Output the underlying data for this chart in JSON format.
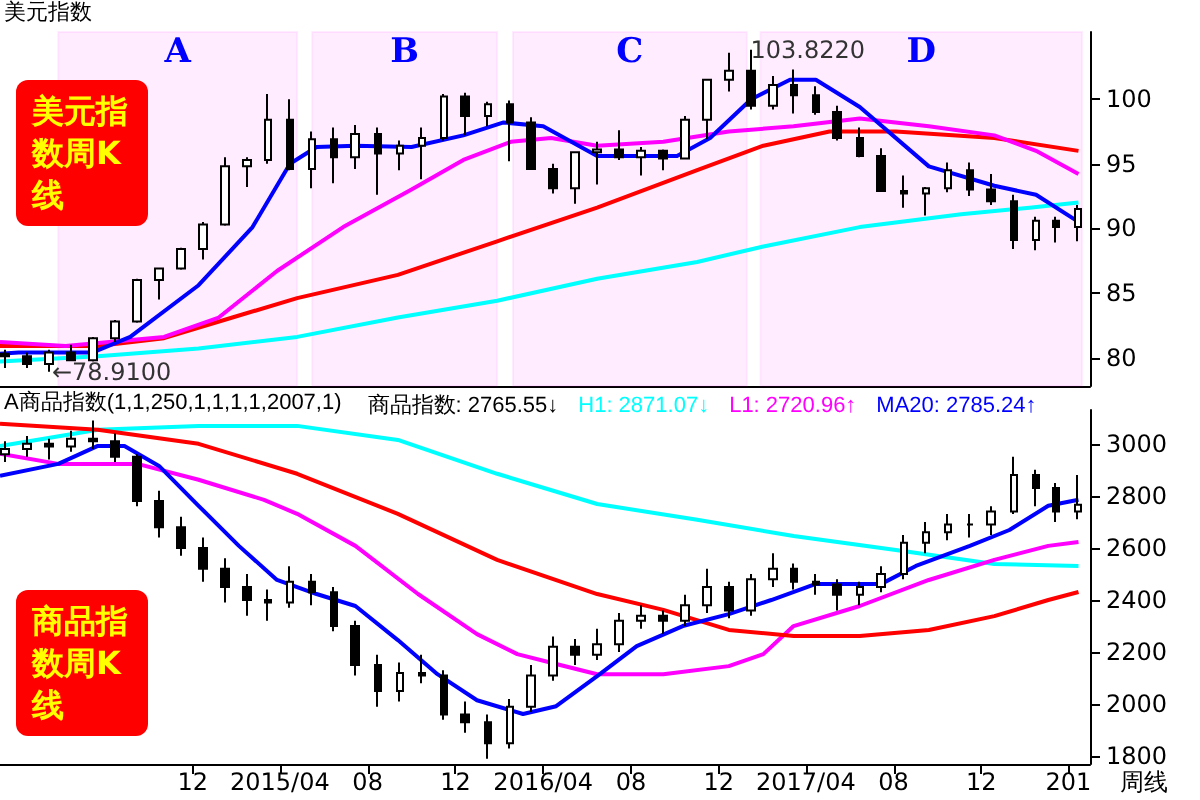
{
  "chart_data": [
    {
      "type": "candlestick",
      "title": "美元指数",
      "xlim": [
        "2014-03-08",
        "2018-05-01"
      ],
      "ylim": [
        77.8,
        105.2
      ],
      "yticks": [
        80,
        85,
        90,
        95,
        100
      ],
      "tick_labels": "y",
      "marker": "none",
      "bands": [
        {
          "axis": "x",
          "from": "2014-05-28",
          "to": "2015-04-25",
          "label": "A",
          "color": "#ff00ff"
        },
        {
          "axis": "x",
          "from": "2015-05-16",
          "to": "2016-01-28",
          "label": "B",
          "color": "#ff00ff"
        },
        {
          "axis": "x",
          "from": "2016-02-19",
          "to": "2017-01-09",
          "label": "C",
          "color": "#ff00ff"
        },
        {
          "axis": "x",
          "from": "2017-01-28",
          "to": "2018-04-20",
          "label": "D",
          "color": "#ff00ff"
        }
      ],
      "annotations": [
        "美元指数周K线",
        {
          "text": "103.8220",
          "x": "2017-01-03",
          "y": 103.822
        },
        {
          "text": "←78.9100",
          "x": "2014-05-08",
          "y": 78.91
        }
      ],
      "series": [
        {
          "color": "#000000",
          "x": [
            "2014-03-15",
            "2014-04-15",
            "2014-05-15",
            "2014-06-15",
            "2014-07-15",
            "2014-08-15",
            "2014-09-15",
            "2014-10-15",
            "2014-11-15",
            "2014-12-15",
            "2015-01-15",
            "2015-02-15",
            "2015-03-15",
            "2015-04-15",
            "2015-05-15",
            "2015-06-15",
            "2015-07-15",
            "2015-08-15",
            "2015-09-15",
            "2015-10-15",
            "2015-11-15",
            "2015-12-15",
            "2016-01-15",
            "2016-02-15",
            "2016-03-15",
            "2016-04-15",
            "2016-05-15",
            "2016-06-15",
            "2016-07-15",
            "2016-08-15",
            "2016-09-15",
            "2016-10-15",
            "2016-11-15",
            "2016-12-15",
            "2017-01-15",
            "2017-02-15",
            "2017-03-15",
            "2017-04-15",
            "2017-05-15",
            "2017-06-15",
            "2017-07-15",
            "2017-08-15",
            "2017-09-15",
            "2017-10-15",
            "2017-11-15",
            "2017-12-15",
            "2018-01-15",
            "2018-02-15",
            "2018-03-15",
            "2018-04-15"
          ],
          "ohlc": [
            [
              80.3,
              80.6,
              79.2,
              80.1
            ],
            [
              80.1,
              80.4,
              79.2,
              79.5
            ],
            [
              79.5,
              80.6,
              78.91,
              80.4
            ],
            [
              80.4,
              81.0,
              79.8,
              79.8
            ],
            [
              79.8,
              81.6,
              79.7,
              81.5
            ],
            [
              81.5,
              82.9,
              81.2,
              82.8
            ],
            [
              82.8,
              86.1,
              82.7,
              86.0
            ],
            [
              86.0,
              86.9,
              84.5,
              86.9
            ],
            [
              86.9,
              88.5,
              86.8,
              88.4
            ],
            [
              88.4,
              90.5,
              87.6,
              90.3
            ],
            [
              90.3,
              95.5,
              90.2,
              94.8
            ],
            [
              94.8,
              95.5,
              93.2,
              95.3
            ],
            [
              95.3,
              100.4,
              95.0,
              98.4
            ],
            [
              98.4,
              100.0,
              94.5,
              94.6
            ],
            [
              94.6,
              97.5,
              93.1,
              96.9
            ],
            [
              96.9,
              97.8,
              93.5,
              95.5
            ],
            [
              95.5,
              98.0,
              94.6,
              97.3
            ],
            [
              97.3,
              97.8,
              92.6,
              95.8
            ],
            [
              95.8,
              96.8,
              94.5,
              96.4
            ],
            [
              96.4,
              97.8,
              93.8,
              97.0
            ],
            [
              97.0,
              100.4,
              96.8,
              100.2
            ],
            [
              100.2,
              100.5,
              97.2,
              98.7
            ],
            [
              98.7,
              99.8,
              97.9,
              99.6
            ],
            [
              99.6,
              99.9,
              95.2,
              98.2
            ],
            [
              98.2,
              98.6,
              94.6,
              94.6
            ],
            [
              94.6,
              95.0,
              92.7,
              93.1
            ],
            [
              93.1,
              95.9,
              91.9,
              95.9
            ],
            [
              95.9,
              96.7,
              93.4,
              96.1
            ],
            [
              96.1,
              97.6,
              95.3,
              95.5
            ],
            [
              95.5,
              96.3,
              94.1,
              96.0
            ],
            [
              96.0,
              96.1,
              94.5,
              95.4
            ],
            [
              95.4,
              98.7,
              95.4,
              98.4
            ],
            [
              98.4,
              101.5,
              96.9,
              101.5
            ],
            [
              101.5,
              103.6,
              100.6,
              102.2
            ],
            [
              102.2,
              103.822,
              99.2,
              99.5
            ],
            [
              99.5,
              101.8,
              99.2,
              101.1
            ],
            [
              101.1,
              102.3,
              98.9,
              100.3
            ],
            [
              100.3,
              101.0,
              98.8,
              99.0
            ],
            [
              99.0,
              99.5,
              96.8,
              97.0
            ],
            [
              97.0,
              97.8,
              95.5,
              95.6
            ],
            [
              95.6,
              96.2,
              92.9,
              92.9
            ],
            [
              92.9,
              94.1,
              91.6,
              92.7
            ],
            [
              92.7,
              93.2,
              91.0,
              93.1
            ],
            [
              93.1,
              95.1,
              92.8,
              94.5
            ],
            [
              94.5,
              95.1,
              92.5,
              93.0
            ],
            [
              93.0,
              94.2,
              91.8,
              92.1
            ],
            [
              92.1,
              92.6,
              88.4,
              89.1
            ],
            [
              89.1,
              90.9,
              88.3,
              90.6
            ],
            [
              90.6,
              90.9,
              88.9,
              90.1
            ],
            [
              90.1,
              91.8,
              89.0,
              91.5
            ]
          ]
        },
        {
          "type": "line",
          "color": "#00ffff",
          "x": [
            "2014-03-08",
            "2014-07-22",
            "2014-12-09",
            "2015-04-25",
            "2015-09-12",
            "2016-01-28",
            "2016-06-15",
            "2016-11-01",
            "2017-02-01",
            "2017-06-15",
            "2017-11-03",
            "2018-02-06",
            "2018-04-15"
          ],
          "values": [
            79.7,
            80.1,
            80.7,
            81.6,
            83.1,
            84.4,
            86.1,
            87.4,
            88.6,
            90.1,
            91.1,
            91.6,
            92.0
          ]
        },
        {
          "type": "line",
          "color": "#ff0000",
          "x": [
            "2014-03-08",
            "2014-07-22",
            "2014-10-22",
            "2015-01-25",
            "2015-04-25",
            "2015-09-12",
            "2016-01-28",
            "2016-06-15",
            "2016-11-01",
            "2017-02-01",
            "2017-05-04",
            "2017-08-04",
            "2017-12-19",
            "2018-04-15"
          ],
          "values": [
            80.9,
            80.9,
            81.5,
            83.1,
            84.6,
            86.4,
            89.0,
            91.6,
            94.5,
            96.4,
            97.5,
            97.5,
            97.0,
            96.0
          ]
        },
        {
          "type": "line",
          "color": "#ff00ff",
          "x": [
            "2014-03-08",
            "2014-06-07",
            "2014-10-22",
            "2015-01-06",
            "2015-03-28",
            "2015-06-28",
            "2015-10-01",
            "2015-12-12",
            "2016-02-16",
            "2016-04-12",
            "2016-06-15",
            "2016-09-15",
            "2016-12-15",
            "2017-03-15",
            "2017-06-15",
            "2017-09-19",
            "2017-12-19",
            "2018-02-15",
            "2018-04-15"
          ],
          "values": [
            81.2,
            80.9,
            81.6,
            83.1,
            86.7,
            90.1,
            93.0,
            95.3,
            96.7,
            97.0,
            96.4,
            96.7,
            97.5,
            97.9,
            98.5,
            97.9,
            97.2,
            96.0,
            94.2
          ]
        },
        {
          "type": "line",
          "color": "#0000ff",
          "x": [
            "2014-03-08",
            "2014-04-03",
            "2014-07-15",
            "2014-09-05",
            "2014-12-09",
            "2015-02-22",
            "2015-04-15",
            "2015-05-22",
            "2015-07-15",
            "2015-10-01",
            "2015-12-12",
            "2016-02-06",
            "2016-04-01",
            "2016-06-15",
            "2016-10-04",
            "2016-11-19",
            "2017-01-15",
            "2017-03-10",
            "2017-04-15",
            "2017-06-15",
            "2017-09-19",
            "2017-12-19",
            "2018-02-15",
            "2018-04-15"
          ],
          "values": [
            80.3,
            80.4,
            80.4,
            81.6,
            85.6,
            90.1,
            95.0,
            96.3,
            96.4,
            96.3,
            97.2,
            98.2,
            97.9,
            95.6,
            95.6,
            97.0,
            100.0,
            101.5,
            101.5,
            99.4,
            94.8,
            93.3,
            92.6,
            90.5
          ]
        }
      ]
    },
    {
      "type": "candlestick",
      "title": "A商品指数(1,1,250,1,1,1,1,2007,1)",
      "legend": "top",
      "xlim": [
        "2014-03-08",
        "2018-05-01"
      ],
      "ylim": [
        1770,
        3130
      ],
      "yticks": [
        1800,
        2000,
        2200,
        2400,
        2600,
        2800,
        3000
      ],
      "marker": "none",
      "xticks": [
        {
          "value": "2014-12-01",
          "label": "12"
        },
        {
          "value": "2015-04-01",
          "label": "2015/04"
        },
        {
          "value": "2015-08-01",
          "label": "08"
        },
        {
          "value": "2015-12-01",
          "label": "12"
        },
        {
          "value": "2016-04-01",
          "label": "2016/04"
        },
        {
          "value": "2016-08-01",
          "label": "08"
        },
        {
          "value": "2016-12-01",
          "label": "12"
        },
        {
          "value": "2017-04-01",
          "label": "2017/04"
        },
        {
          "value": "2017-08-01",
          "label": "08"
        },
        {
          "value": "2017-12-01",
          "label": "12"
        },
        {
          "value": "2018-04-01",
          "label": "201"
        }
      ],
      "annotations": [
        "商品指数周K线",
        "周线"
      ],
      "series": [
        {
          "name": "商品指数: 2765.55↓",
          "color": "#000000",
          "x": [
            "2014-03-15",
            "2014-04-15",
            "2014-05-15",
            "2014-06-15",
            "2014-07-15",
            "2014-08-15",
            "2014-09-15",
            "2014-10-15",
            "2014-11-15",
            "2014-12-15",
            "2015-01-15",
            "2015-02-15",
            "2015-03-15",
            "2015-04-15",
            "2015-05-15",
            "2015-06-15",
            "2015-07-15",
            "2015-08-15",
            "2015-09-15",
            "2015-10-15",
            "2015-11-15",
            "2015-12-15",
            "2016-01-15",
            "2016-02-15",
            "2016-03-15",
            "2016-04-15",
            "2016-05-15",
            "2016-06-15",
            "2016-07-15",
            "2016-08-15",
            "2016-09-15",
            "2016-10-15",
            "2016-11-15",
            "2016-12-15",
            "2017-01-15",
            "2017-02-15",
            "2017-03-15",
            "2017-04-15",
            "2017-05-15",
            "2017-06-15",
            "2017-07-15",
            "2017-08-15",
            "2017-09-15",
            "2017-10-15",
            "2017-11-15",
            "2017-12-15",
            "2018-01-15",
            "2018-02-15",
            "2018-03-15",
            "2018-04-15"
          ],
          "ohlc": [
            [
              2960,
              3010,
              2930,
              2980
            ],
            [
              2980,
              3030,
              2950,
              3000
            ],
            [
              3000,
              3020,
              2940,
              2990
            ],
            [
              2990,
              3050,
              2970,
              3020
            ],
            [
              3020,
              3090,
              2980,
              3010
            ],
            [
              3010,
              3040,
              2930,
              2950
            ],
            [
              2950,
              2960,
              2760,
              2780
            ],
            [
              2780,
              2820,
              2640,
              2680
            ],
            [
              2680,
              2720,
              2570,
              2600
            ],
            [
              2600,
              2640,
              2470,
              2520
            ],
            [
              2520,
              2560,
              2390,
              2450
            ],
            [
              2450,
              2500,
              2340,
              2400
            ],
            [
              2400,
              2440,
              2320,
              2390
            ],
            [
              2390,
              2530,
              2370,
              2470
            ],
            [
              2470,
              2500,
              2380,
              2430
            ],
            [
              2430,
              2450,
              2280,
              2300
            ],
            [
              2300,
              2320,
              2110,
              2150
            ],
            [
              2150,
              2190,
              1990,
              2050
            ],
            [
              2050,
              2160,
              2010,
              2120
            ],
            [
              2120,
              2190,
              2080,
              2110
            ],
            [
              2110,
              2130,
              1940,
              1960
            ],
            [
              1960,
              2010,
              1890,
              1930
            ],
            [
              1930,
              1960,
              1790,
              1850
            ],
            [
              1850,
              2020,
              1830,
              1990
            ],
            [
              1990,
              2150,
              1970,
              2110
            ],
            [
              2110,
              2260,
              2090,
              2220
            ],
            [
              2220,
              2250,
              2150,
              2190
            ],
            [
              2190,
              2290,
              2170,
              2230
            ],
            [
              2230,
              2350,
              2200,
              2320
            ],
            [
              2320,
              2380,
              2290,
              2340
            ],
            [
              2340,
              2360,
              2270,
              2320
            ],
            [
              2320,
              2420,
              2300,
              2380
            ],
            [
              2380,
              2520,
              2350,
              2450
            ],
            [
              2450,
              2470,
              2330,
              2360
            ],
            [
              2360,
              2500,
              2340,
              2480
            ],
            [
              2480,
              2580,
              2450,
              2520
            ],
            [
              2520,
              2540,
              2440,
              2470
            ],
            [
              2470,
              2500,
              2420,
              2460
            ],
            [
              2460,
              2480,
              2360,
              2420
            ],
            [
              2420,
              2470,
              2380,
              2450
            ],
            [
              2450,
              2530,
              2430,
              2500
            ],
            [
              2500,
              2650,
              2480,
              2620
            ],
            [
              2620,
              2700,
              2580,
              2660
            ],
            [
              2660,
              2730,
              2630,
              2690
            ],
            [
              2690,
              2730,
              2640,
              2690
            ],
            [
              2690,
              2760,
              2650,
              2740
            ],
            [
              2740,
              2950,
              2730,
              2880
            ],
            [
              2880,
              2900,
              2760,
              2830
            ],
            [
              2830,
              2850,
              2700,
              2740
            ],
            [
              2740,
              2880,
              2710,
              2766
            ]
          ]
        },
        {
          "type": "line",
          "name": "H1: 2871.07↓",
          "color": "#00ffff",
          "x": [
            "2014-03-08",
            "2014-07-22",
            "2014-12-09",
            "2015-04-25",
            "2015-09-12",
            "2016-01-28",
            "2016-06-15",
            "2016-11-01",
            "2017-03-15",
            "2017-08-04",
            "2017-12-19",
            "2018-04-15"
          ],
          "values": [
            2992,
            3054,
            3069,
            3069,
            3015,
            2885,
            2769,
            2708,
            2646,
            2592,
            2538,
            2531
          ]
        },
        {
          "type": "line",
          "name": "L1: 2720.96↑",
          "color": "#ff00ff",
          "x": [
            "2014-03-08",
            "2014-05-28",
            "2014-09-15",
            "2014-12-09",
            "2015-03-10",
            "2015-04-25",
            "2015-07-15",
            "2015-10-10",
            "2015-12-31",
            "2016-02-25",
            "2016-04-19",
            "2016-06-15",
            "2016-09-15",
            "2016-12-15",
            "2017-02-01",
            "2017-03-15",
            "2017-06-15",
            "2017-09-19",
            "2017-12-19",
            "2018-03-04",
            "2018-04-15"
          ],
          "values": [
            2962,
            2923,
            2923,
            2862,
            2785,
            2731,
            2608,
            2423,
            2269,
            2192,
            2154,
            2115,
            2115,
            2146,
            2192,
            2300,
            2377,
            2477,
            2554,
            2608,
            2623
          ]
        },
        {
          "type": "line",
          "color": "#ff0000",
          "x": [
            "2014-03-08",
            "2014-07-22",
            "2014-12-09",
            "2015-04-25",
            "2015-09-12",
            "2016-01-28",
            "2016-06-15",
            "2016-09-15",
            "2016-12-15",
            "2017-03-15",
            "2017-06-15",
            "2017-09-19",
            "2017-12-19",
            "2018-03-04",
            "2018-04-15"
          ],
          "values": [
            3077,
            3054,
            3000,
            2885,
            2731,
            2554,
            2423,
            2362,
            2285,
            2262,
            2262,
            2285,
            2338,
            2400,
            2431
          ]
        },
        {
          "type": "line",
          "name": "MA20: 2785.24↑",
          "color": "#0000ff",
          "x": [
            "2014-03-08",
            "2014-05-28",
            "2014-07-22",
            "2014-08-28",
            "2014-10-15",
            "2014-12-09",
            "2015-02-03",
            "2015-03-28",
            "2015-05-22",
            "2015-07-15",
            "2015-09-12",
            "2015-11-06",
            "2015-12-31",
            "2016-03-04",
            "2016-04-19",
            "2016-06-15",
            "2016-08-09",
            "2016-10-12",
            "2016-12-15",
            "2017-02-12",
            "2017-04-15",
            "2017-07-15",
            "2017-09-01",
            "2017-11-15",
            "2018-01-09",
            "2018-03-04",
            "2018-04-15"
          ],
          "values": [
            2877,
            2923,
            2992,
            2992,
            2915,
            2762,
            2608,
            2477,
            2423,
            2377,
            2246,
            2115,
            2015,
            1962,
            1992,
            2108,
            2223,
            2300,
            2346,
            2400,
            2462,
            2462,
            2531,
            2608,
            2669,
            2762,
            2785
          ]
        }
      ]
    }
  ]
}
